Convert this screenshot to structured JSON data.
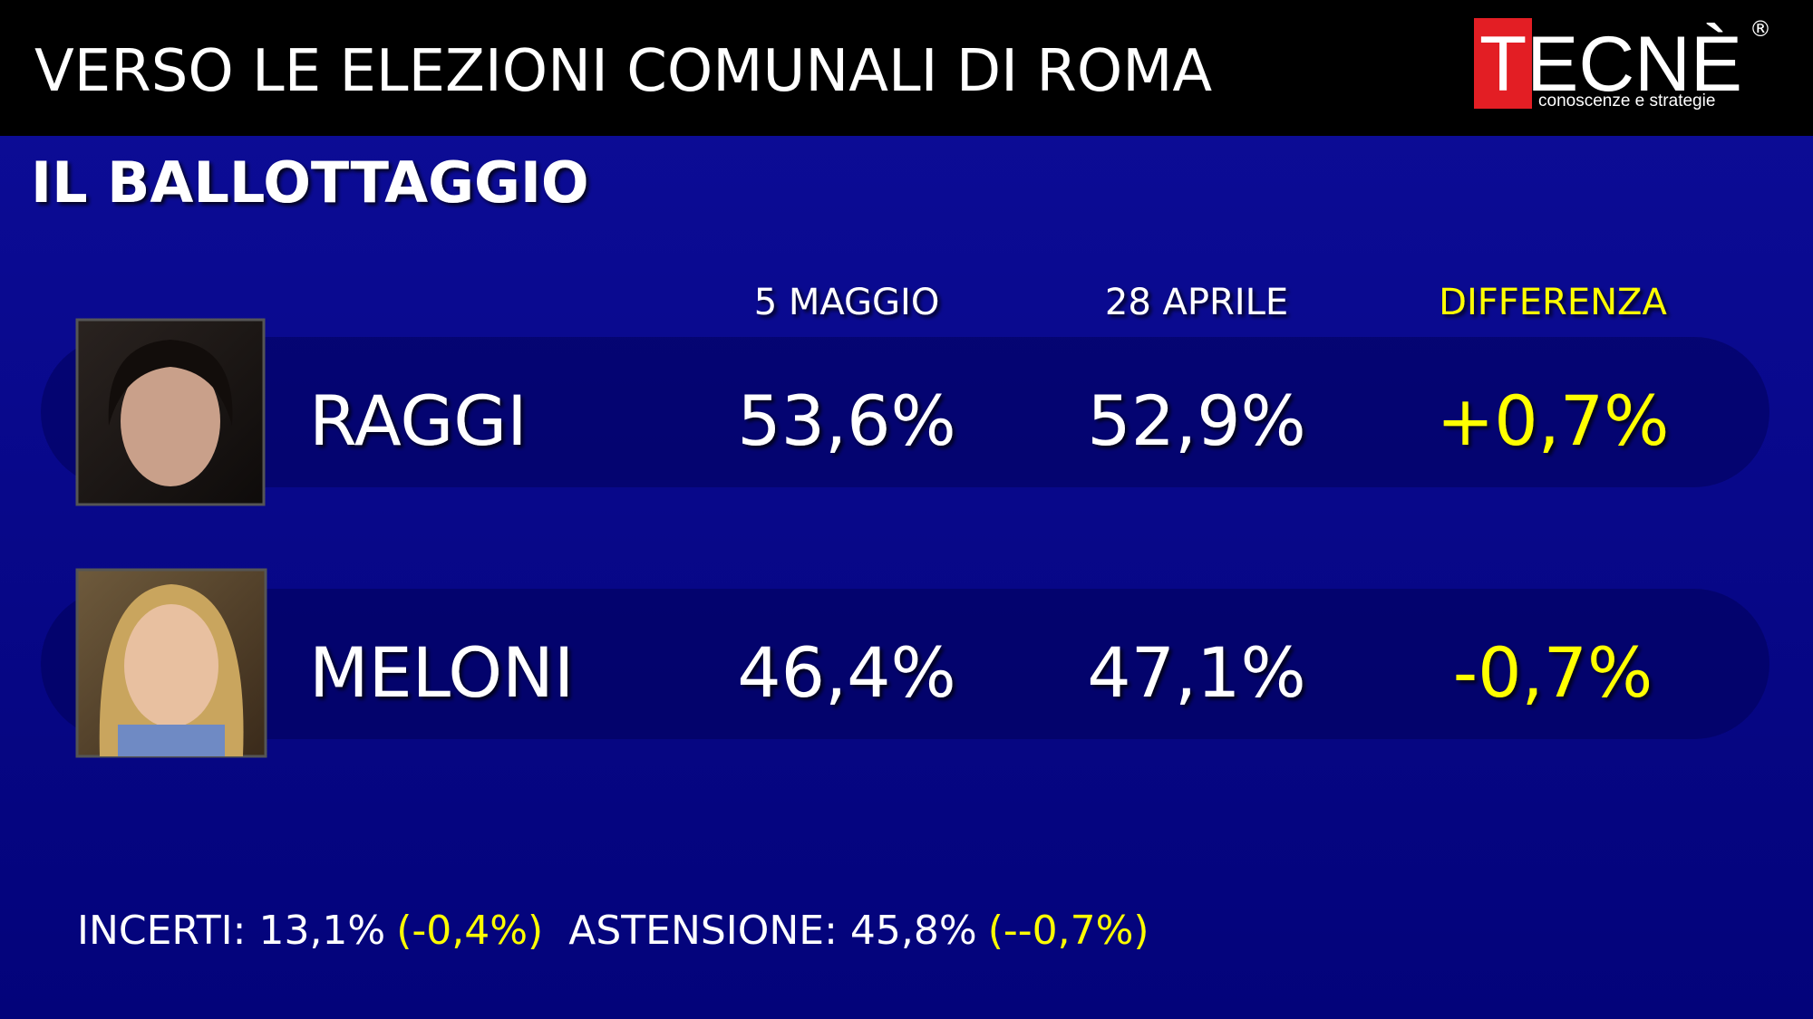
{
  "header": {
    "title": "VERSO LE ELEZIONI COMUNALI DI ROMA",
    "logo": {
      "name": "TECNÈ",
      "mark": "®",
      "tagline": "conoscenze e strategie"
    }
  },
  "subtitle": "IL BALLOTTAGGIO",
  "table": {
    "columns": [
      "5 MAGGIO",
      "28 APRILE",
      "DIFFERENZA"
    ],
    "rows": [
      [
        "RAGGI",
        "53,6%",
        "52,9%",
        "+0,7%"
      ],
      [
        "MELONI",
        "46,4%",
        "47,1%",
        "-0,7%"
      ]
    ]
  },
  "footer": [
    [
      "INCERTI: 13,1%",
      "(-0,4%)"
    ],
    [
      "ASTENSIONE: 45,8%",
      "(--0,7%)"
    ]
  ]
}
